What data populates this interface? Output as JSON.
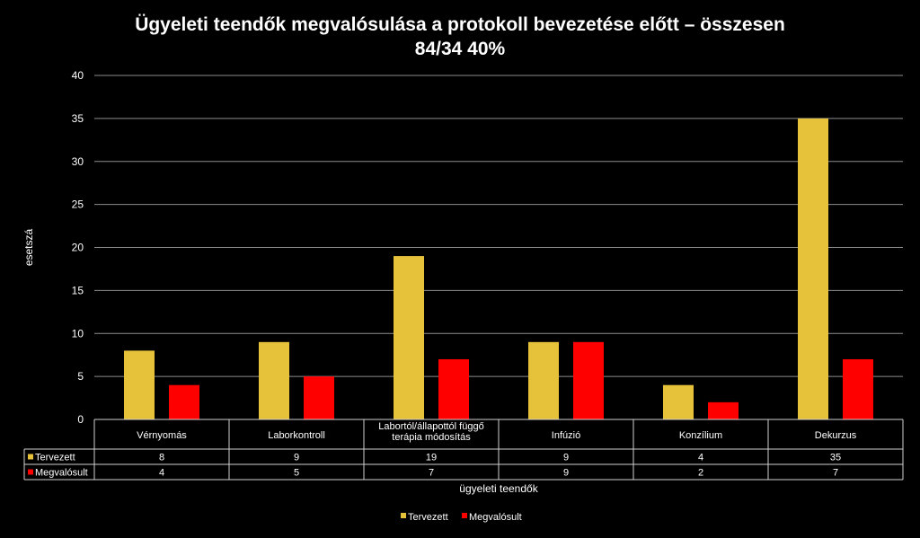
{
  "chart_data": {
    "type": "bar",
    "title": "Ügyeleti teendők megvalósulása a protokoll bevezetése előtt – összesen",
    "subtitle": "84/34 40%",
    "xlabel": "ügyeleti teendők",
    "ylabel": "esetszá",
    "ylim": [
      0,
      40
    ],
    "yticks": [
      "0",
      "5",
      "10",
      "15",
      "20",
      "25",
      "30",
      "35",
      "40"
    ],
    "categories": [
      [
        "Vérnyomás"
      ],
      [
        "Laborkontroll"
      ],
      [
        "Labortól/állapottól függő",
        "terápia módosítás"
      ],
      [
        "Infúzió"
      ],
      [
        "Konzílium"
      ],
      [
        "Dekurzus"
      ]
    ],
    "series": [
      {
        "name": "Tervezett",
        "values": [
          8,
          9,
          19,
          9,
          4,
          35
        ],
        "color": "#E6C23A"
      },
      {
        "name": "Megvalósult",
        "values": [
          4,
          5,
          7,
          9,
          2,
          7
        ],
        "color": "#FF0000"
      }
    ],
    "grid": true,
    "legend_position": "bottom",
    "data_table": true
  }
}
